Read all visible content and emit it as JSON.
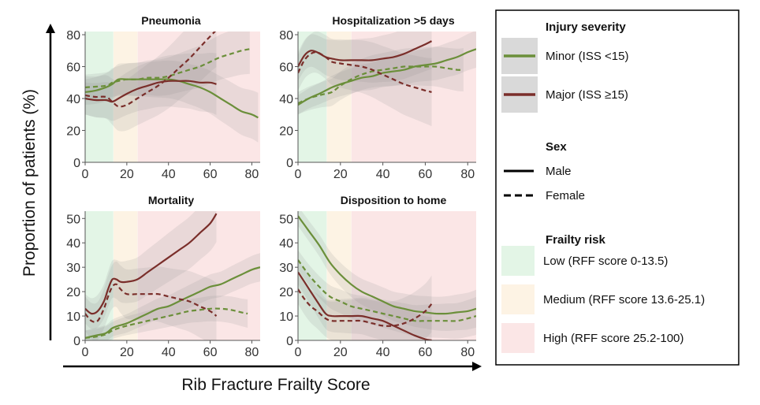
{
  "figure": {
    "ylabel": "Proportion of patients (%)",
    "xlabel": "Rib Fracture Frailty Score"
  },
  "colors": {
    "minor": "#6b8f3a",
    "major": "#7a2e2a",
    "band_low": "#e3f5e6",
    "band_medium": "#fdf3e4",
    "band_high": "#fbe6e6",
    "ci_shade": "#8c8c8c"
  },
  "legend": {
    "severity_title": "Injury severity",
    "severity_items": [
      {
        "label": "Minor (ISS <15)",
        "color": "#6b8f3a"
      },
      {
        "label": "Major (ISS ≥15)",
        "color": "#7a2e2a"
      }
    ],
    "sex_title": "Sex",
    "sex_items": [
      {
        "label": "Male",
        "style": "solid"
      },
      {
        "label": "Female",
        "style": "dashed"
      }
    ],
    "frailty_title": "Frailty risk",
    "frailty_items": [
      {
        "label": "Low (RFF score 0-13.5)",
        "color": "#e3f5e6"
      },
      {
        "label": "Medium (RFF score 13.6-25.1)",
        "color": "#fdf3e4"
      },
      {
        "label": "High (RFF score 25.2-100)",
        "color": "#fbe6e6"
      }
    ]
  },
  "chart_data": [
    {
      "type": "line",
      "title": "Pneumonia",
      "xlim": [
        0,
        84
      ],
      "ylim": [
        0,
        82
      ],
      "xticks": [
        0,
        20,
        40,
        60,
        80
      ],
      "yticks": [
        0,
        20,
        40,
        60,
        80
      ],
      "bands": [
        [
          0,
          13.5
        ],
        [
          13.6,
          25.1
        ],
        [
          25.2,
          100
        ]
      ],
      "series": [
        {
          "group": "Minor",
          "sex": "Male",
          "x": [
            0,
            5,
            10,
            13,
            16,
            20,
            25,
            30,
            35,
            40,
            45,
            50,
            55,
            60,
            65,
            70,
            75,
            80,
            83
          ],
          "y": [
            44,
            45,
            47,
            49,
            52,
            52,
            52,
            52,
            52,
            52,
            51,
            49,
            47,
            44,
            40,
            36,
            32,
            30,
            28
          ],
          "ci": 8
        },
        {
          "group": "Minor",
          "sex": "Female",
          "x": [
            0,
            10,
            13,
            16,
            20,
            25,
            30,
            35,
            40,
            45,
            50,
            55,
            60,
            65,
            70,
            75,
            79
          ],
          "y": [
            47,
            48,
            50,
            51,
            52,
            52,
            53,
            53,
            54,
            56,
            58,
            60,
            63,
            66,
            68,
            70,
            71
          ],
          "ci": 8
        },
        {
          "group": "Major",
          "sex": "Male",
          "x": [
            0,
            5,
            10,
            13,
            16,
            20,
            25,
            30,
            35,
            40,
            45,
            50,
            55,
            60,
            63
          ],
          "y": [
            40,
            39,
            39,
            38,
            40,
            43,
            46,
            48,
            50,
            51,
            51,
            51,
            50,
            50,
            49
          ],
          "ci": 10
        },
        {
          "group": "Major",
          "sex": "Female",
          "x": [
            0,
            5,
            10,
            13,
            16,
            20,
            25,
            30,
            35,
            40,
            45,
            50,
            55,
            60,
            63
          ],
          "y": [
            42,
            41,
            41,
            38,
            35,
            36,
            40,
            44,
            48,
            53,
            59,
            65,
            72,
            79,
            83
          ],
          "ci": 12
        }
      ]
    },
    {
      "type": "line",
      "title": "Hospitalization >5 days",
      "xlim": [
        0,
        84
      ],
      "ylim": [
        0,
        82
      ],
      "xticks": [
        0,
        20,
        40,
        60,
        80
      ],
      "yticks": [
        0,
        20,
        40,
        60,
        80
      ],
      "bands": [
        [
          0,
          13.5
        ],
        [
          13.6,
          25.1
        ],
        [
          25.2,
          100
        ]
      ],
      "series": [
        {
          "group": "Minor",
          "sex": "Male",
          "x": [
            0,
            5,
            10,
            13,
            16,
            20,
            25,
            30,
            35,
            40,
            45,
            50,
            55,
            60,
            65,
            70,
            75,
            80,
            84
          ],
          "y": [
            36,
            40,
            43,
            45,
            47,
            49,
            51,
            53,
            54,
            56,
            57,
            58,
            60,
            61,
            62,
            64,
            66,
            69,
            71
          ],
          "ci": 6
        },
        {
          "group": "Minor",
          "sex": "Female",
          "x": [
            0,
            5,
            10,
            13,
            16,
            20,
            25,
            30,
            35,
            40,
            45,
            50,
            55,
            60,
            65,
            70,
            75,
            78
          ],
          "y": [
            37,
            40,
            42,
            43,
            44,
            48,
            52,
            55,
            57,
            58,
            59,
            60,
            60,
            60,
            60,
            59,
            58,
            58
          ],
          "ci": 7
        },
        {
          "group": "Major",
          "sex": "Male",
          "x": [
            0,
            3,
            6,
            9,
            13,
            16,
            20,
            25,
            30,
            35,
            40,
            45,
            50,
            55,
            60,
            63
          ],
          "y": [
            60,
            67,
            70,
            69,
            66,
            65,
            64,
            64,
            64,
            64,
            65,
            66,
            68,
            71,
            74,
            76
          ],
          "ci": 9
        },
        {
          "group": "Major",
          "sex": "Female",
          "x": [
            0,
            3,
            6,
            9,
            13,
            16,
            20,
            25,
            30,
            35,
            40,
            45,
            50,
            55,
            60,
            63
          ],
          "y": [
            56,
            64,
            68,
            69,
            66,
            63,
            62,
            61,
            60,
            58,
            55,
            52,
            49,
            47,
            45,
            44
          ],
          "ci": 11
        }
      ]
    },
    {
      "type": "line",
      "title": "Mortality",
      "xlim": [
        0,
        84
      ],
      "ylim": [
        0,
        53
      ],
      "xticks": [
        0,
        20,
        40,
        60,
        80
      ],
      "yticks": [
        0,
        10,
        20,
        30,
        40,
        50
      ],
      "bands": [
        [
          0,
          13.5
        ],
        [
          13.6,
          25.1
        ],
        [
          25.2,
          100
        ]
      ],
      "series": [
        {
          "group": "Minor",
          "sex": "Male",
          "x": [
            0,
            5,
            10,
            13,
            16,
            20,
            25,
            30,
            35,
            40,
            45,
            50,
            55,
            60,
            65,
            70,
            75,
            80,
            84
          ],
          "y": [
            1,
            2,
            3,
            5,
            6,
            7,
            9,
            11,
            13,
            14,
            16,
            18,
            20,
            22,
            23,
            25,
            27,
            29,
            30
          ],
          "ci": 3
        },
        {
          "group": "Minor",
          "sex": "Female",
          "x": [
            0,
            5,
            10,
            13,
            16,
            20,
            25,
            30,
            35,
            40,
            45,
            50,
            55,
            60,
            65,
            70,
            75,
            78
          ],
          "y": [
            1,
            1.5,
            2.5,
            4,
            5,
            6,
            7,
            8,
            9,
            10,
            11,
            12,
            12.5,
            13,
            13,
            12.5,
            11.5,
            11
          ],
          "ci": 3
        },
        {
          "group": "Major",
          "sex": "Male",
          "x": [
            0,
            3,
            6,
            9,
            11,
            13,
            15,
            17,
            20,
            25,
            30,
            35,
            40,
            45,
            50,
            55,
            60,
            63
          ],
          "y": [
            13,
            11,
            12,
            16,
            21,
            25,
            25,
            24,
            24,
            25,
            28,
            31,
            34,
            37,
            40,
            44,
            48,
            52
          ],
          "ci": 6
        },
        {
          "group": "Major",
          "sex": "Female",
          "x": [
            0,
            3,
            6,
            9,
            11,
            13,
            15,
            17,
            20,
            25,
            30,
            35,
            40,
            45,
            50,
            55,
            60,
            63
          ],
          "y": [
            11,
            8,
            8,
            13,
            18,
            22,
            23,
            21,
            19,
            19,
            19,
            19,
            18,
            17,
            16,
            14,
            12,
            10
          ],
          "ci": 7
        }
      ]
    },
    {
      "type": "line",
      "title": "Disposition to home",
      "xlim": [
        0,
        84
      ],
      "ylim": [
        0,
        53
      ],
      "xticks": [
        0,
        20,
        40,
        60,
        80
      ],
      "yticks": [
        0,
        10,
        20,
        30,
        40,
        50
      ],
      "bands": [
        [
          0,
          13.5
        ],
        [
          13.6,
          25.1
        ],
        [
          25.2,
          100
        ]
      ],
      "series": [
        {
          "group": "Minor",
          "sex": "Male",
          "x": [
            0,
            5,
            10,
            15,
            20,
            25,
            30,
            35,
            40,
            45,
            50,
            55,
            60,
            65,
            70,
            75,
            80,
            84
          ],
          "y": [
            51,
            45,
            39,
            32,
            27,
            23,
            20,
            18,
            16,
            14,
            13,
            12,
            11.5,
            11,
            11,
            11.5,
            12,
            13
          ],
          "ci": 4
        },
        {
          "group": "Minor",
          "sex": "Female",
          "x": [
            0,
            5,
            10,
            15,
            20,
            25,
            30,
            35,
            40,
            45,
            50,
            55,
            60,
            65,
            70,
            75,
            80,
            84
          ],
          "y": [
            33,
            27,
            22,
            18,
            16,
            14,
            13,
            12,
            11,
            10,
            9,
            8,
            8,
            8,
            8,
            8,
            9,
            10
          ],
          "ci": 4
        },
        {
          "group": "Major",
          "sex": "Male",
          "x": [
            0,
            3,
            6,
            9,
            13,
            16,
            20,
            25,
            30,
            35,
            40,
            45,
            50,
            55,
            60,
            63
          ],
          "y": [
            28,
            24,
            20,
            16,
            11,
            10,
            10,
            10,
            10,
            9,
            8,
            6,
            4,
            2,
            0.5,
            0
          ],
          "ci": 5
        },
        {
          "group": "Major",
          "sex": "Female",
          "x": [
            0,
            3,
            6,
            9,
            13,
            16,
            20,
            25,
            30,
            35,
            40,
            45,
            50,
            55,
            60,
            63
          ],
          "y": [
            21,
            17,
            14,
            12,
            9,
            8,
            8,
            8,
            8,
            7,
            6,
            6,
            7,
            9,
            12,
            15
          ],
          "ci": 6
        }
      ]
    }
  ]
}
